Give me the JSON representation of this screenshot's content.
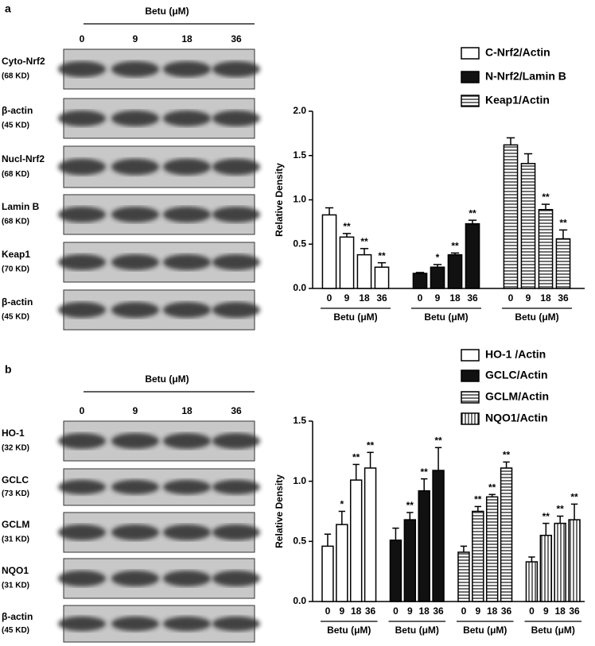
{
  "panels": [
    {
      "label": "a",
      "blot": {
        "header": "Betu (μM)",
        "lanes": [
          "0",
          "9",
          "18",
          "36"
        ],
        "rows": [
          {
            "name": "Cyto-Nrf2",
            "size": "(68 KD)"
          },
          {
            "name": "β-actin",
            "size": "(45 KD)"
          },
          {
            "name": "Nucl-Nrf2",
            "size": "(68 KD)"
          },
          {
            "name": "Lamin B",
            "size": "(68 KD)"
          },
          {
            "name": "Keap1",
            "size": "(70 KD)"
          },
          {
            "name": "β-actin",
            "size": "(45 KD)"
          }
        ]
      }
    },
    {
      "label": "b",
      "blot": {
        "header": "Betu (μM)",
        "lanes": [
          "0",
          "9",
          "18",
          "36"
        ],
        "rows": [
          {
            "name": "HO-1",
            "size": "(32 KD)"
          },
          {
            "name": "GCLC",
            "size": "(73 KD)"
          },
          {
            "name": "GCLM",
            "size": "(31 KD)"
          },
          {
            "name": "NQO1",
            "size": "(31 KD)"
          },
          {
            "name": "β-actin",
            "size": "(45 KD)"
          }
        ]
      }
    }
  ],
  "chart_data": [
    {
      "type": "bar",
      "ylabel": "Relative Density",
      "xlabel": "Betu (μM)",
      "categories": [
        "0",
        "9",
        "18",
        "36"
      ],
      "ylim": [
        0,
        2
      ],
      "yticks": [
        {
          "value": 0,
          "label": "0.0"
        },
        {
          "value": 0.5,
          "label": "0.5"
        },
        {
          "value": 1,
          "label": "1.0"
        },
        {
          "value": 1.5,
          "label": "1.5"
        },
        {
          "value": 2,
          "label": "2.0"
        }
      ],
      "series": [
        {
          "name": "C-Nrf2/Actin",
          "color": "#000",
          "fill": "white",
          "values": [
            0.83,
            0.58,
            0.38,
            0.24
          ],
          "errors": [
            0.08,
            0.04,
            0.07,
            0.05
          ],
          "annotations": [
            null,
            "**",
            "**",
            "**"
          ]
        },
        {
          "name": "N-Nrf2/Lamin B",
          "color": "#000",
          "fill": "black",
          "values": [
            0.17,
            0.24,
            0.38,
            0.73
          ],
          "errors": [
            0.01,
            0.03,
            0.02,
            0.04
          ],
          "annotations": [
            null,
            "*",
            "**",
            "**"
          ]
        },
        {
          "name": "Keap1/Actin",
          "color": "#000",
          "fill": "horizontal-stripes",
          "values": [
            1.62,
            1.41,
            0.89,
            0.56
          ],
          "errors": [
            0.08,
            0.11,
            0.06,
            0.1
          ],
          "annotations": [
            null,
            null,
            "**",
            "**"
          ]
        }
      ]
    },
    {
      "type": "bar",
      "ylabel": "Relative Density",
      "xlabel": "Betu (μM)",
      "categories": [
        "0",
        "9",
        "18",
        "36"
      ],
      "ylim": [
        0,
        1.5
      ],
      "yticks": [
        {
          "value": 0,
          "label": "0.0"
        },
        {
          "value": 0.5,
          "label": "0.5"
        },
        {
          "value": 1,
          "label": "1.0"
        },
        {
          "value": 1.5,
          "label": "1.5"
        }
      ],
      "series": [
        {
          "name": "HO-1 /Actin",
          "color": "#000",
          "fill": "white",
          "values": [
            0.46,
            0.64,
            1.01,
            1.11
          ],
          "errors": [
            0.1,
            0.11,
            0.13,
            0.13
          ],
          "annotations": [
            null,
            "*",
            "**",
            "**"
          ]
        },
        {
          "name": "GCLC/Actin",
          "color": "#000",
          "fill": "black",
          "values": [
            0.51,
            0.68,
            0.92,
            1.09
          ],
          "errors": [
            0.1,
            0.06,
            0.1,
            0.19
          ],
          "annotations": [
            null,
            "**",
            "**",
            "**"
          ]
        },
        {
          "name": "GCLM/Actin",
          "color": "#000",
          "fill": "horizontal-stripes",
          "values": [
            0.41,
            0.75,
            0.87,
            1.11
          ],
          "errors": [
            0.05,
            0.04,
            0.02,
            0.05
          ],
          "annotations": [
            null,
            "**",
            "**",
            "**"
          ]
        },
        {
          "name": "NQO1/Actin",
          "color": "#000",
          "fill": "vertical-stripes",
          "values": [
            0.33,
            0.55,
            0.65,
            0.68
          ],
          "errors": [
            0.04,
            0.1,
            0.06,
            0.13
          ],
          "annotations": [
            null,
            "**",
            "**",
            "**"
          ]
        }
      ]
    }
  ]
}
